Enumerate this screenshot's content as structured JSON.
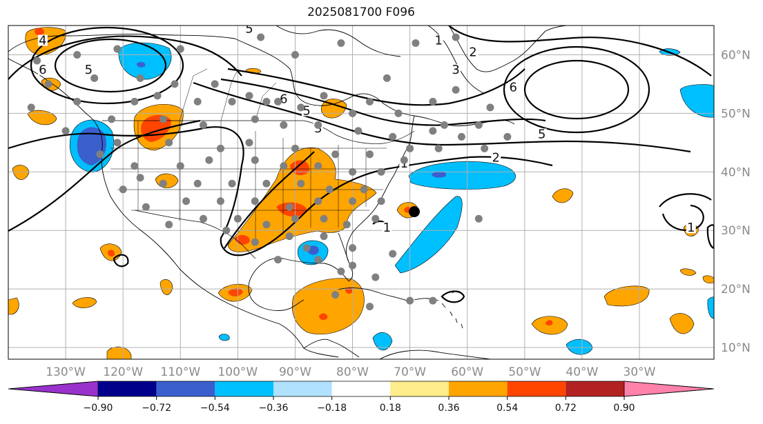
{
  "map": {
    "title": "2025081700 F096",
    "extent": {
      "lon_min": -140,
      "lon_max": -17,
      "lat_min": 8,
      "lat_max": 65
    },
    "lat_labels": [
      {
        "lat": 60,
        "text": "60°N"
      },
      {
        "lat": 50,
        "text": "50°N"
      },
      {
        "lat": 40,
        "text": "40°N"
      },
      {
        "lat": 30,
        "text": "30°N"
      },
      {
        "lat": 20,
        "text": "20°N"
      },
      {
        "lat": 10,
        "text": "10°N"
      }
    ],
    "lon_labels": [
      {
        "lon": -130,
        "text": "130°W"
      },
      {
        "lon": -120,
        "text": "120°W"
      },
      {
        "lon": -110,
        "text": "110°W"
      },
      {
        "lon": -100,
        "text": "100°W"
      },
      {
        "lon": -90,
        "text": "90°W"
      },
      {
        "lon": -80,
        "text": "80°W"
      },
      {
        "lon": -70,
        "text": "70°W"
      },
      {
        "lon": -60,
        "text": "60°W"
      },
      {
        "lon": -50,
        "text": "50°W"
      },
      {
        "lon": -40,
        "text": "40°W"
      },
      {
        "lon": -30,
        "text": "30°W"
      }
    ],
    "contour_labels": [
      {
        "text": "6",
        "lon": -134,
        "lat": 57
      },
      {
        "text": "5",
        "lon": -126,
        "lat": 57
      },
      {
        "text": "4",
        "lon": -134,
        "lat": 62
      },
      {
        "text": "6",
        "lon": -92,
        "lat": 52
      },
      {
        "text": "5",
        "lon": -88,
        "lat": 50
      },
      {
        "text": "3",
        "lon": -86,
        "lat": 47
      },
      {
        "text": "1",
        "lon": -71,
        "lat": 41
      },
      {
        "text": "2",
        "lon": -55,
        "lat": 42
      },
      {
        "text": "5",
        "lon": -47,
        "lat": 46
      },
      {
        "text": "6",
        "lon": -52,
        "lat": 54
      },
      {
        "text": "3",
        "lon": -62,
        "lat": 57
      },
      {
        "text": "2",
        "lon": -59,
        "lat": 60
      },
      {
        "text": "1",
        "lon": -65,
        "lat": 62
      },
      {
        "text": "1",
        "lon": -74,
        "lat": 30
      },
      {
        "text": "1",
        "lon": -21,
        "lat": 30
      },
      {
        "text": "5",
        "lon": -98,
        "lat": 64
      }
    ],
    "stations": [
      [
        -135,
        59
      ],
      [
        -128,
        60
      ],
      [
        -121,
        61
      ],
      [
        -110,
        61
      ],
      [
        -96,
        63
      ],
      [
        -90,
        60
      ],
      [
        -82,
        62
      ],
      [
        -69,
        62
      ],
      [
        -62,
        63
      ],
      [
        -74,
        56
      ],
      [
        -62,
        54
      ],
      [
        -133,
        55
      ],
      [
        -125,
        56
      ],
      [
        -117,
        56
      ],
      [
        -111,
        55
      ],
      [
        -104,
        55
      ],
      [
        -98,
        53
      ],
      [
        -93,
        52
      ],
      [
        -85,
        53
      ],
      [
        -77,
        52
      ],
      [
        -66,
        52
      ],
      [
        -56,
        51
      ],
      [
        -128,
        52
      ],
      [
        -118,
        52
      ],
      [
        -114,
        53
      ],
      [
        -107,
        52
      ],
      [
        -101,
        52
      ],
      [
        -95,
        52
      ],
      [
        -89,
        51
      ],
      [
        -80,
        50
      ],
      [
        -72,
        50
      ],
      [
        -64,
        48
      ],
      [
        -58,
        48
      ],
      [
        -122,
        49
      ],
      [
        -113,
        49
      ],
      [
        -106,
        48
      ],
      [
        -97,
        49
      ],
      [
        -92,
        48
      ],
      [
        -86,
        48
      ],
      [
        -79,
        47
      ],
      [
        -73,
        46
      ],
      [
        -66,
        47
      ],
      [
        -61,
        46
      ],
      [
        -53,
        46
      ],
      [
        -121,
        45
      ],
      [
        -112,
        45
      ],
      [
        -103,
        44
      ],
      [
        -98,
        45
      ],
      [
        -90,
        44
      ],
      [
        -83,
        43
      ],
      [
        -77,
        43
      ],
      [
        -70,
        44
      ],
      [
        -65,
        44
      ],
      [
        -57,
        44
      ],
      [
        -118,
        41
      ],
      [
        -110,
        41
      ],
      [
        -105,
        42
      ],
      [
        -97,
        42
      ],
      [
        -92,
        41
      ],
      [
        -86,
        41
      ],
      [
        -80,
        40
      ],
      [
        -75,
        40
      ],
      [
        -71,
        42
      ],
      [
        -120,
        37
      ],
      [
        -113,
        38
      ],
      [
        -107,
        38
      ],
      [
        -101,
        38
      ],
      [
        -95,
        38
      ],
      [
        -89,
        38
      ],
      [
        -84,
        37
      ],
      [
        -78,
        37
      ],
      [
        -116,
        34
      ],
      [
        -109,
        35
      ],
      [
        -103,
        35
      ],
      [
        -97,
        35
      ],
      [
        -91,
        34
      ],
      [
        -86,
        35
      ],
      [
        -80,
        35
      ],
      [
        -75,
        35
      ],
      [
        -112,
        31
      ],
      [
        -106,
        32
      ],
      [
        -100,
        32
      ],
      [
        -95,
        31
      ],
      [
        -90,
        32
      ],
      [
        -85,
        32
      ],
      [
        -81,
        31
      ],
      [
        -76,
        32
      ],
      [
        -97,
        28
      ],
      [
        -91,
        29
      ],
      [
        -85,
        29
      ],
      [
        -80,
        27
      ],
      [
        -73,
        26
      ],
      [
        -93,
        25
      ],
      [
        -86,
        25
      ],
      [
        -80,
        24
      ],
      [
        -76,
        22
      ],
      [
        -83,
        19
      ],
      [
        -77,
        17
      ],
      [
        -70,
        18
      ],
      [
        -66,
        18
      ],
      [
        -58,
        32
      ],
      [
        -130,
        47
      ],
      [
        -136,
        51
      ],
      [
        -124,
        43
      ],
      [
        -117,
        39
      ],
      [
        -102,
        30
      ],
      [
        -88,
        27
      ],
      [
        -82,
        23
      ]
    ]
  },
  "colorbar": {
    "ticks": [
      "−0.90",
      "−0.72",
      "−0.54",
      "−0.36",
      "−0.18",
      "0.18",
      "0.36",
      "0.54",
      "0.72",
      "0.90"
    ],
    "colors": {
      "under": "#9932cc",
      "bins": [
        "#00008b",
        "#3a5fcd",
        "#00bfff",
        "#b0e2ff",
        "#ffffff",
        "#ffec8b",
        "#ffa500",
        "#ff4500",
        "#b22222"
      ],
      "over": "#ff82ab"
    }
  }
}
